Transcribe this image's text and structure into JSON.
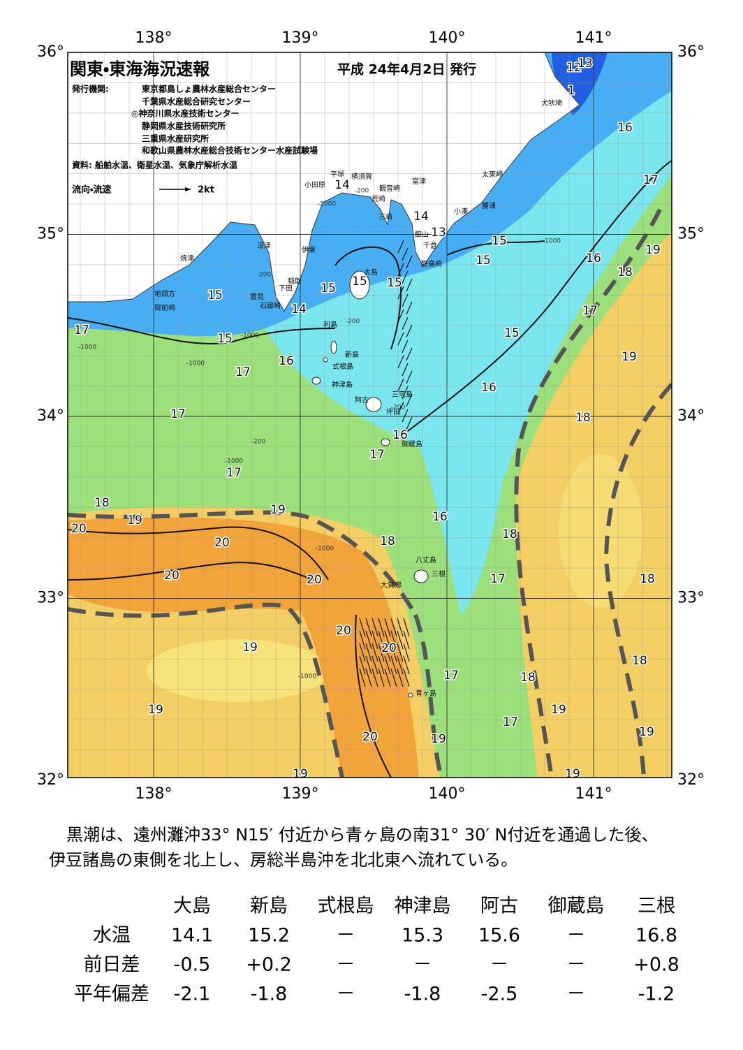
{
  "header": {
    "title": "関東・東海海況速報",
    "date": "平成 24年4月2日 発行",
    "issuer_label": "発行機関:",
    "issuers": [
      "東京都島しょ農林水産総合センター",
      "千葉県水産総合研究センター",
      "◎神奈川県水産技術センター",
      "静岡県水産技術研究所",
      "三重県水産研究所",
      "和歌山県農林水産総合技術センター水産試験場"
    ],
    "source": "資料: 船舶水温、衛星水温、気象庁解析水温",
    "legend": {
      "label": "流向・流速",
      "scale": "2kt"
    }
  },
  "map": {
    "lon_labels": [
      "138°",
      "139°",
      "140°",
      "141°"
    ],
    "lat_labels": [
      "36°",
      "35°",
      "34°",
      "33°",
      "32°"
    ],
    "places": [
      "犬吠埼",
      "太東岬",
      "勝浦",
      "小湊",
      "富津",
      "横須賀",
      "観音崎",
      "平塚",
      "小田原",
      "荒崎",
      "三崎",
      "館山",
      "千倉",
      "野島崎",
      "沼津",
      "伊東",
      "焼津",
      "稲取",
      "下田",
      "雲見",
      "石廊崎",
      "地頭方",
      "御前崎",
      "大島",
      "利島",
      "新島",
      "式根島",
      "神津島",
      "三宅島",
      "阿古",
      "坪田",
      "御蔵島",
      "八丈島",
      "三根",
      "大賀郷",
      "青ヶ島"
    ],
    "temperature_labels": [
      "12",
      "13",
      "1",
      "16",
      "17",
      "14",
      "14",
      "13",
      "15",
      "15",
      "16",
      "19",
      "18",
      "15",
      "15",
      "15",
      "15",
      "14",
      "17",
      "17",
      "15",
      "15",
      "16",
      "19",
      "17",
      "16",
      "17",
      "18",
      "16",
      "17",
      "17",
      "18",
      "19",
      "19",
      "16",
      "20",
      "18",
      "20",
      "18",
      "20",
      "20",
      "17",
      "18",
      "20",
      "20",
      "19",
      "18",
      "17",
      "18",
      "19",
      "19",
      "17",
      "19",
      "20",
      "19",
      "19",
      "19"
    ],
    "depth_labels": [
      "-200",
      "-200",
      "-200",
      "-200",
      "-200",
      "-1000",
      "-1000",
      "-1000",
      "-1000",
      "-1000",
      "-1000",
      "-1000",
      "-1000"
    ]
  },
  "summary": [
    "黒潮は、遠州灘沖33° N15′ 付近から青ヶ島の南31° 30′ N付近を通過した後、",
    "伊豆諸島の東側を北上し、房総半島沖を北北東へ流れている。"
  ],
  "table": {
    "columns": [
      "大島",
      "新島",
      "式根島",
      "神津島",
      "阿古",
      "御蔵島",
      "三根"
    ],
    "rows": [
      [
        "水温",
        "14.1",
        "15.2",
        "－",
        "15.3",
        "15.6",
        "－",
        "16.8"
      ],
      [
        "前日差",
        "-0.5",
        "+0.2",
        "－",
        "－",
        "－",
        "－",
        "+0.8"
      ],
      [
        "平年偏差",
        "-2.1",
        "-1.8",
        "－",
        "-1.8",
        "-2.5",
        "－",
        "-1.2"
      ]
    ]
  }
}
